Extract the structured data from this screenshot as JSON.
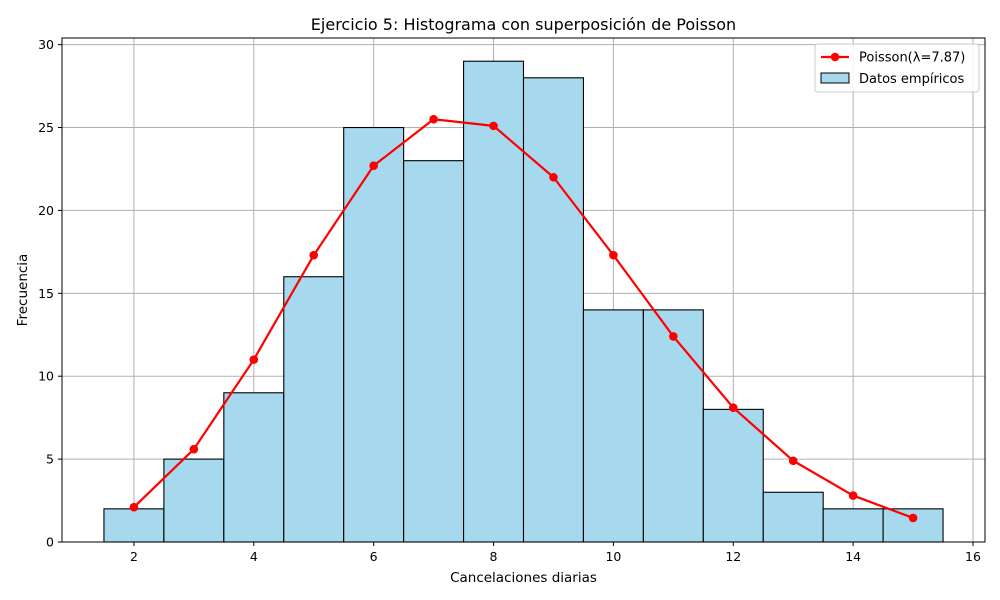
{
  "chart_data": {
    "type": "bar",
    "title": "Ejercicio 5: Histograma con superposición de Poisson",
    "xlabel": "Cancelaciones diarias",
    "ylabel": "Frecuencia",
    "xlim": [
      0.8,
      16.2
    ],
    "ylim": [
      0,
      30.4
    ],
    "xticks": [
      2,
      4,
      6,
      8,
      10,
      12,
      14,
      16
    ],
    "yticks": [
      0,
      5,
      10,
      15,
      20,
      25,
      30
    ],
    "grid": true,
    "legend_position": "top-right",
    "histogram": {
      "name": "Datos empíricos",
      "color": "#a6d8ee",
      "edge_color": "#000000",
      "bin_width": 1,
      "x": [
        2,
        3,
        4,
        5,
        6,
        7,
        8,
        9,
        10,
        11,
        12,
        13,
        14,
        15
      ],
      "values": [
        2,
        5,
        9,
        16,
        25,
        23,
        29,
        28,
        14,
        14,
        8,
        3,
        2,
        2
      ]
    },
    "poisson": {
      "name": "Poisson(λ=7.87)",
      "color": "#ff0000",
      "x": [
        2,
        3,
        4,
        5,
        6,
        7,
        8,
        9,
        10,
        11,
        12,
        13,
        14,
        15
      ],
      "values": [
        2.1,
        5.6,
        11.0,
        17.3,
        22.7,
        25.5,
        25.1,
        22.0,
        17.3,
        12.4,
        8.1,
        4.9,
        2.8,
        1.45
      ]
    }
  }
}
